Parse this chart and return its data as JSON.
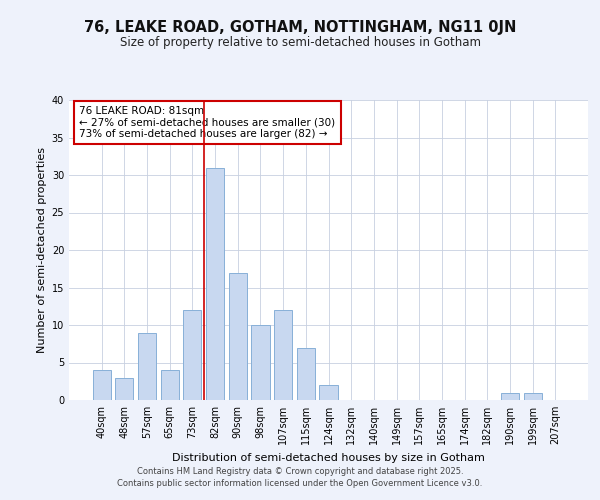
{
  "title": "76, LEAKE ROAD, GOTHAM, NOTTINGHAM, NG11 0JN",
  "subtitle": "Size of property relative to semi-detached houses in Gotham",
  "xlabel": "Distribution of semi-detached houses by size in Gotham",
  "ylabel": "Number of semi-detached properties",
  "bins": [
    "40sqm",
    "48sqm",
    "57sqm",
    "65sqm",
    "73sqm",
    "82sqm",
    "90sqm",
    "98sqm",
    "107sqm",
    "115sqm",
    "124sqm",
    "132sqm",
    "140sqm",
    "149sqm",
    "157sqm",
    "165sqm",
    "174sqm",
    "182sqm",
    "190sqm",
    "199sqm",
    "207sqm"
  ],
  "counts": [
    4,
    3,
    9,
    4,
    12,
    31,
    17,
    10,
    12,
    7,
    2,
    0,
    0,
    0,
    0,
    0,
    0,
    0,
    1,
    1,
    0
  ],
  "bar_color": "#c8d8f0",
  "bar_edge_color": "#88b0d8",
  "highlight_bin_index": 5,
  "highlight_line_color": "#cc0000",
  "annotation_text": "76 LEAKE ROAD: 81sqm\n← 27% of semi-detached houses are smaller (30)\n73% of semi-detached houses are larger (82) →",
  "annotation_box_color": "#ffffff",
  "annotation_box_edge_color": "#cc0000",
  "ylim": [
    0,
    40
  ],
  "yticks": [
    0,
    5,
    10,
    15,
    20,
    25,
    30,
    35,
    40
  ],
  "bg_color": "#eef2fb",
  "plot_bg_color": "#ffffff",
  "footer_line1": "Contains HM Land Registry data © Crown copyright and database right 2025.",
  "footer_line2": "Contains public sector information licensed under the Open Government Licence v3.0.",
  "title_fontsize": 10.5,
  "subtitle_fontsize": 8.5,
  "axis_label_fontsize": 8,
  "tick_fontsize": 7,
  "annotation_fontsize": 7.5,
  "footer_fontsize": 6
}
